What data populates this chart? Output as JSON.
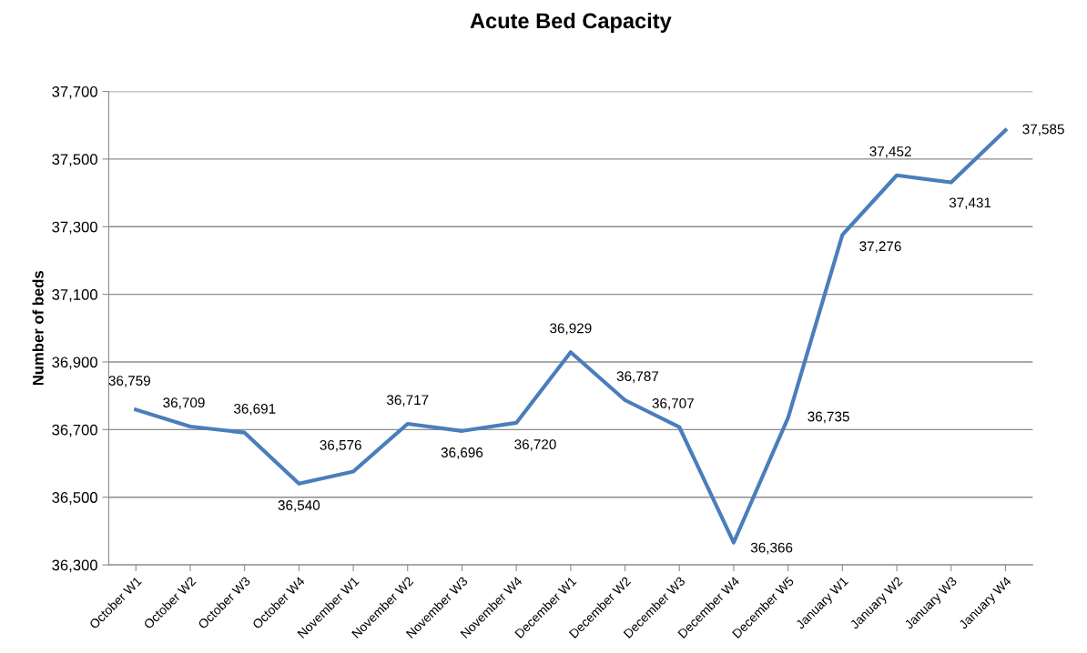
{
  "chart_data": {
    "type": "line",
    "title": "Acute Bed Capacity",
    "ylabel": "Number of beds",
    "categories": [
      "October W1",
      "October W2",
      "October W3",
      "October W4",
      "November W1",
      "November W2",
      "November W3",
      "November W4",
      "December W1",
      "December W2",
      "December W3",
      "December W4",
      "December W5",
      "January W1",
      "January W2",
      "January W3",
      "January W4"
    ],
    "series": [
      {
        "color": "#4a7ebb",
        "values": [
          36759,
          36709,
          36691,
          36540,
          36576,
          36717,
          36696,
          36720,
          36929,
          36787,
          36707,
          36366,
          36735,
          37276,
          37452,
          37431,
          37585
        ],
        "value_labels": [
          "36,759",
          "36,709",
          "36,691",
          "36,540",
          "36,576",
          "36,717",
          "36,696",
          "36,720",
          "36,929",
          "36,787",
          "36,707",
          "36,366",
          "36,735",
          "37,276",
          "37,452",
          "37,431",
          "37,585"
        ]
      }
    ],
    "ylim": [
      36300,
      37700
    ],
    "yticks": [
      {
        "value": 36300,
        "label": "36,300"
      },
      {
        "value": 36500,
        "label": "36,500"
      },
      {
        "value": 36700,
        "label": "36,700"
      },
      {
        "value": 36900,
        "label": "36,900"
      },
      {
        "value": 37100,
        "label": "37,100"
      },
      {
        "value": 37300,
        "label": "37,300"
      },
      {
        "value": 37500,
        "label": "37,500"
      },
      {
        "value": 37700,
        "label": "37,700"
      }
    ],
    "grid": "y",
    "marker": "none",
    "line_style": "solid"
  }
}
